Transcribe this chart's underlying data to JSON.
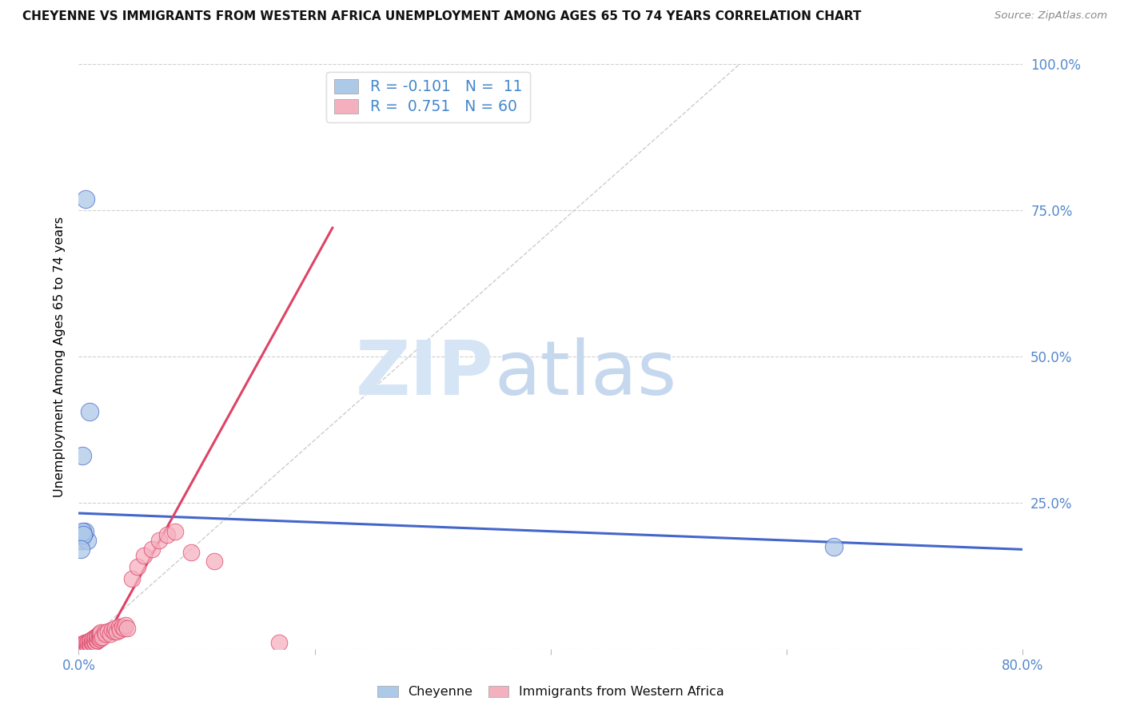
{
  "title": "CHEYENNE VS IMMIGRANTS FROM WESTERN AFRICA UNEMPLOYMENT AMONG AGES 65 TO 74 YEARS CORRELATION CHART",
  "source": "Source: ZipAtlas.com",
  "ylabel": "Unemployment Among Ages 65 to 74 years",
  "xlim": [
    0.0,
    0.8
  ],
  "ylim": [
    0.0,
    1.0
  ],
  "xticks": [
    0.0,
    0.2,
    0.4,
    0.6,
    0.8
  ],
  "xticklabels": [
    "0.0%",
    "",
    "",
    "",
    "80.0%"
  ],
  "yticks": [
    0.0,
    0.25,
    0.5,
    0.75,
    1.0
  ],
  "yticklabels": [
    "",
    "25.0%",
    "50.0%",
    "75.0%",
    "100.0%"
  ],
  "cheyenne_R": -0.101,
  "cheyenne_N": 11,
  "immigrants_R": 0.751,
  "immigrants_N": 60,
  "cheyenne_color": "#adc9e8",
  "immigrants_color": "#f5b0c0",
  "blue_line_color": "#4466cc",
  "pink_line_color": "#dd4466",
  "watermark_color": "#d5e5f5",
  "cheyenne_x": [
    0.006,
    0.009,
    0.003,
    0.004,
    0.002,
    0.007,
    0.005,
    0.003,
    0.004,
    0.64,
    0.002
  ],
  "cheyenne_y": [
    0.77,
    0.405,
    0.33,
    0.195,
    0.185,
    0.185,
    0.2,
    0.2,
    0.195,
    0.175,
    0.17
  ],
  "immigrants_x": [
    0.001,
    0.002,
    0.002,
    0.003,
    0.004,
    0.005,
    0.005,
    0.006,
    0.006,
    0.007,
    0.007,
    0.008,
    0.008,
    0.009,
    0.009,
    0.01,
    0.01,
    0.011,
    0.011,
    0.012,
    0.012,
    0.013,
    0.013,
    0.014,
    0.014,
    0.015,
    0.015,
    0.016,
    0.016,
    0.017,
    0.017,
    0.018,
    0.018,
    0.019,
    0.019,
    0.02,
    0.022,
    0.023,
    0.025,
    0.027,
    0.028,
    0.03,
    0.031,
    0.032,
    0.034,
    0.035,
    0.037,
    0.038,
    0.04,
    0.041,
    0.045,
    0.05,
    0.055,
    0.062,
    0.068,
    0.075,
    0.082,
    0.095,
    0.115,
    0.17
  ],
  "immigrants_y": [
    0.005,
    0.005,
    0.008,
    0.005,
    0.008,
    0.005,
    0.01,
    0.005,
    0.01,
    0.005,
    0.01,
    0.005,
    0.012,
    0.008,
    0.013,
    0.008,
    0.015,
    0.01,
    0.015,
    0.01,
    0.018,
    0.012,
    0.018,
    0.012,
    0.02,
    0.015,
    0.022,
    0.015,
    0.022,
    0.018,
    0.025,
    0.018,
    0.025,
    0.02,
    0.028,
    0.02,
    0.028,
    0.025,
    0.03,
    0.025,
    0.032,
    0.03,
    0.035,
    0.03,
    0.038,
    0.032,
    0.038,
    0.035,
    0.04,
    0.035,
    0.12,
    0.14,
    0.16,
    0.17,
    0.185,
    0.195,
    0.2,
    0.165,
    0.15,
    0.01
  ],
  "blue_trendline_x": [
    0.0,
    0.8
  ],
  "blue_trendline_y": [
    0.232,
    0.17
  ],
  "pink_trendline_x": [
    0.018,
    0.215
  ],
  "pink_trendline_y": [
    0.0,
    0.72
  ],
  "diag_line_x": [
    0.0,
    0.56
  ],
  "diag_line_y": [
    0.0,
    1.0
  ]
}
